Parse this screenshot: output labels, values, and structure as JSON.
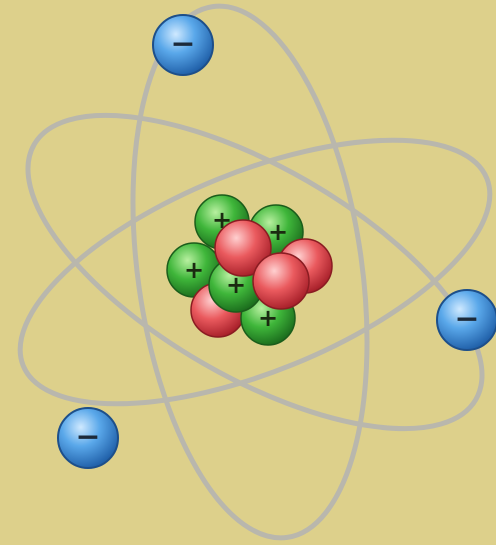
{
  "electron_label": "−",
  "proton_label": "+"
}
